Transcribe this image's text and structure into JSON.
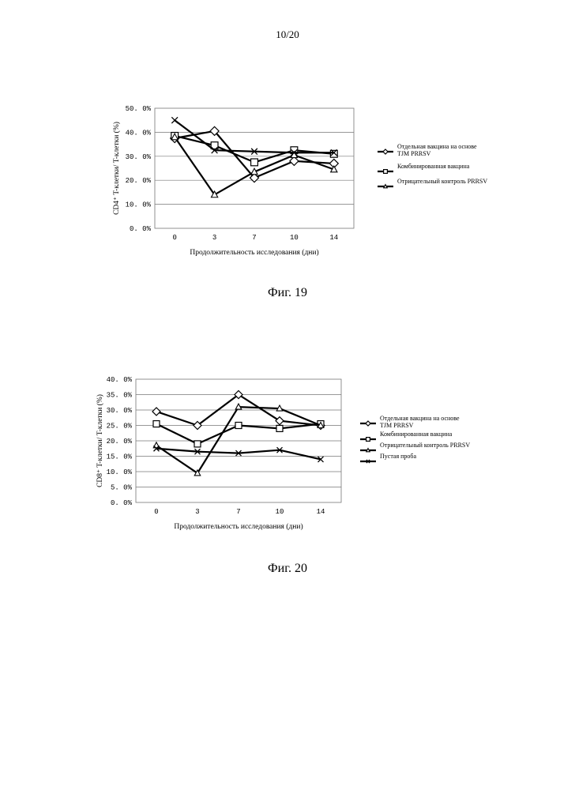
{
  "page_number": "10/20",
  "figures": [
    {
      "caption": "Фиг. 19"
    },
    {
      "caption": "Фиг. 20"
    }
  ],
  "chart_data": [
    {
      "type": "line",
      "categories": [
        "0",
        "3",
        "7",
        "10",
        "14"
      ],
      "ylim": [
        0,
        50
      ],
      "yticks": [
        "0. 0%",
        "10. 0%",
        "20. 0%",
        "30. 0%",
        "40. 0%",
        "50. 0%"
      ],
      "ylabel": "CD4⁺ T-клетки/ T-клетки (%)",
      "xlabel": "Продолжительность исследования (дни)",
      "grid": true,
      "legend_position": "right",
      "series": [
        {
          "name": "Отдельная вакцина на основе TJM PRRSV",
          "legend_lines": [
            "Отдельная вакцина на основе",
            "TJM PRRSV"
          ],
          "marker": "diamond",
          "values": [
            37.5,
            40.5,
            21.0,
            28.0,
            27.0
          ]
        },
        {
          "name": "Комбинированная вакцина",
          "legend_lines": [
            "Комбинированная вакцина"
          ],
          "marker": "square",
          "values": [
            38.5,
            34.5,
            27.5,
            32.5,
            31.0
          ]
        },
        {
          "name": "Отрицательный контроль PRRSV",
          "legend_lines": [
            "Отрицательный контроль PRRSV"
          ],
          "marker": "triangle",
          "values": [
            38.0,
            14.0,
            23.5,
            30.5,
            24.5
          ]
        },
        {
          "name": "",
          "legend_lines": [],
          "marker": "x",
          "values": [
            45.0,
            32.5,
            32.0,
            31.5,
            31.5
          ]
        }
      ]
    },
    {
      "type": "line",
      "categories": [
        "0",
        "3",
        "7",
        "10",
        "14"
      ],
      "ylim": [
        0,
        40
      ],
      "yticks": [
        "0. 0%",
        "5. 0%",
        "10. 0%",
        "15. 0%",
        "20. 0%",
        "25. 0%",
        "30. 0%",
        "35. 0%",
        "40. 0%"
      ],
      "ylabel": "CD8⁺ T-клетки/ T-клетки (%)",
      "xlabel": "Продолжительность исследования (дни)",
      "grid": true,
      "legend_position": "right",
      "series": [
        {
          "name": "Отдельная вакцина на основе TJM PRRSV",
          "legend_lines": [
            "Отдельная вакцина на основе",
            "TJM PRRSV"
          ],
          "marker": "diamond",
          "values": [
            29.5,
            25.0,
            35.0,
            26.5,
            25.0
          ]
        },
        {
          "name": "Комбинированная вакцина",
          "legend_lines": [
            "Комбинированная вакцина"
          ],
          "marker": "square",
          "values": [
            25.5,
            19.0,
            25.0,
            24.0,
            25.5
          ]
        },
        {
          "name": "Отрицательный контроль PRRSV",
          "legend_lines": [
            "Отрицательный контроль PRRSV"
          ],
          "marker": "triangle",
          "values": [
            18.5,
            9.5,
            31.0,
            30.5,
            25.0
          ]
        },
        {
          "name": "Пустая проба",
          "legend_lines": [
            "Пустая проба"
          ],
          "marker": "x",
          "values": [
            17.5,
            16.5,
            16.0,
            17.0,
            14.0
          ]
        }
      ]
    }
  ]
}
